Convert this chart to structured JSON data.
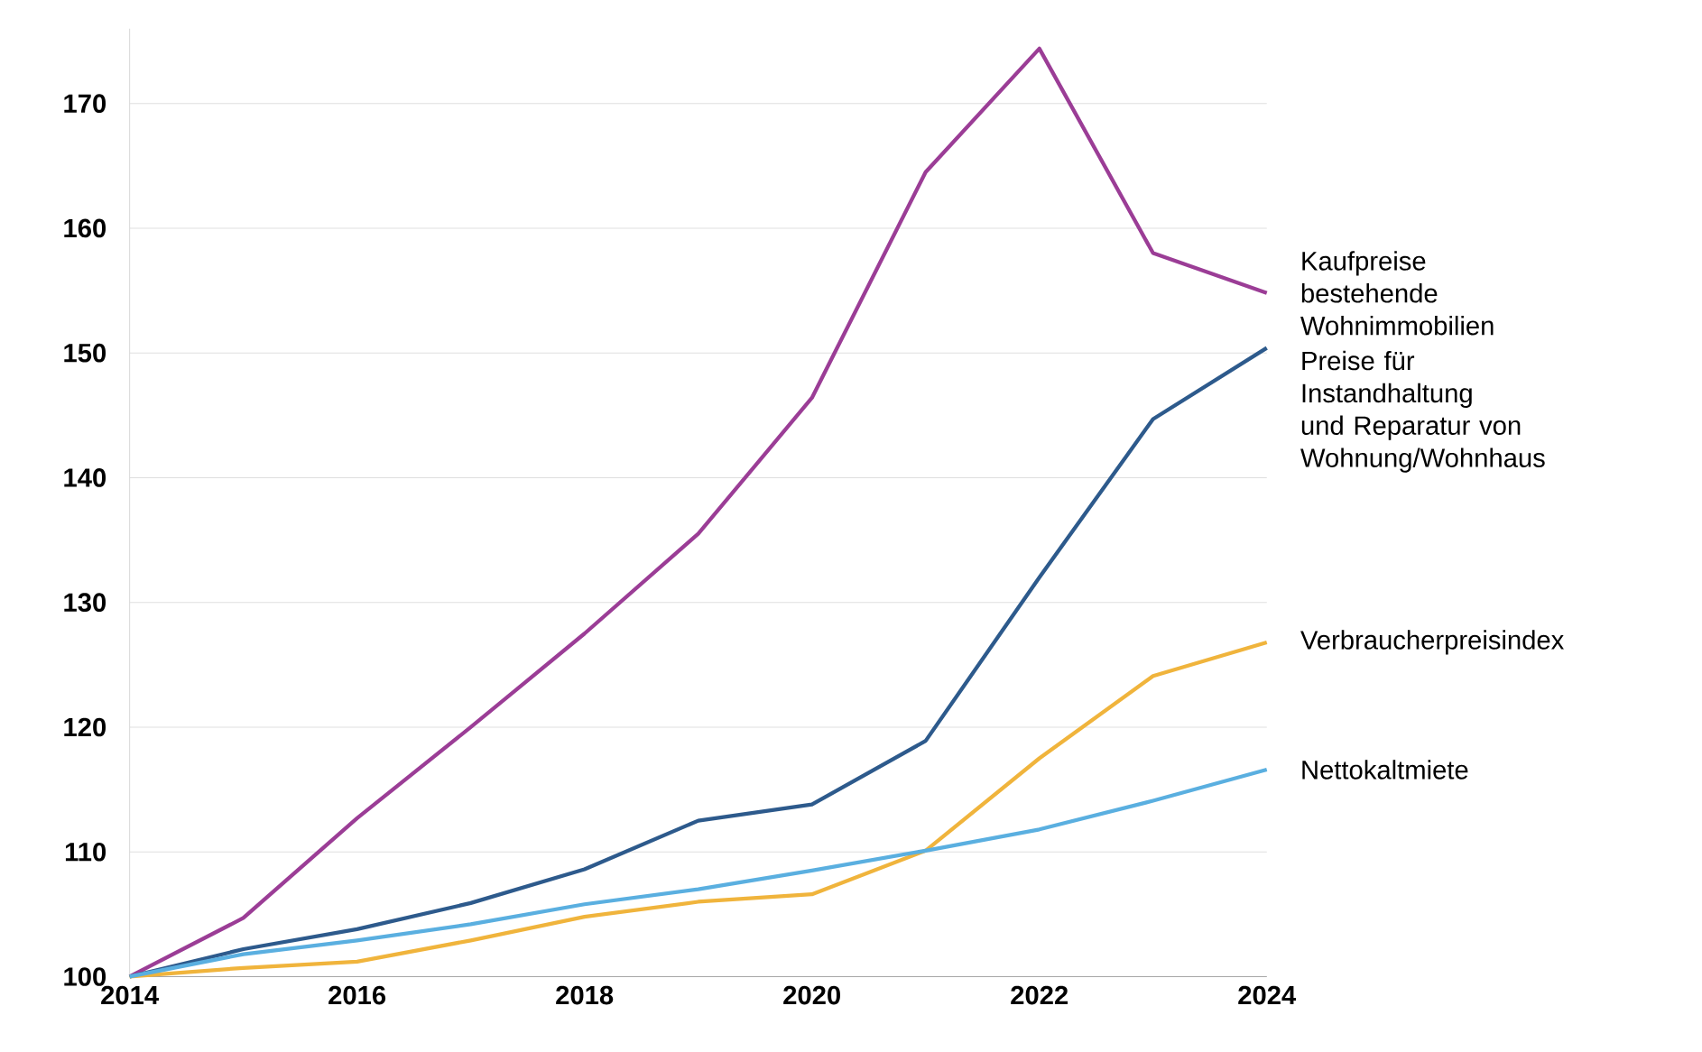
{
  "chart_data": {
    "type": "line",
    "x": [
      2014,
      2015,
      2016,
      2017,
      2018,
      2019,
      2020,
      2021,
      2022,
      2023,
      2024
    ],
    "xlim": [
      2014,
      2024
    ],
    "xticks": [
      2014,
      2016,
      2018,
      2020,
      2022,
      2024
    ],
    "ylim": [
      100,
      176
    ],
    "yticks": [
      100,
      110,
      120,
      130,
      140,
      150,
      160,
      170
    ],
    "grid": "y",
    "legend": false,
    "marker": "none",
    "line_style": "solid",
    "series": [
      {
        "name": "Kaufpreise bestehende Wohnimmobilien",
        "color": "#9b3d96",
        "values": [
          100,
          104.7,
          112.7,
          120,
          127.5,
          135.5,
          146.4,
          164.5,
          174.4,
          158,
          154.8
        ]
      },
      {
        "name": "Preise für Instandhaltung und Reparatur von Wohnung/Wohnhaus",
        "color": "#2d5a8c",
        "values": [
          100,
          102.2,
          103.8,
          105.9,
          108.6,
          112.5,
          113.8,
          118.9,
          132,
          144.7,
          150.4
        ]
      },
      {
        "name": "Verbraucherpreisindex",
        "color": "#f0b43c",
        "values": [
          100,
          100.7,
          101.2,
          102.9,
          104.8,
          106,
          106.6,
          110.1,
          117.5,
          124.1,
          126.8
        ]
      },
      {
        "name": "Nettokaltmiete",
        "color": "#5aafe0",
        "values": [
          100,
          101.8,
          102.9,
          104.2,
          105.8,
          107,
          108.5,
          110.1,
          111.8,
          114.1,
          116.6
        ]
      }
    ]
  }
}
